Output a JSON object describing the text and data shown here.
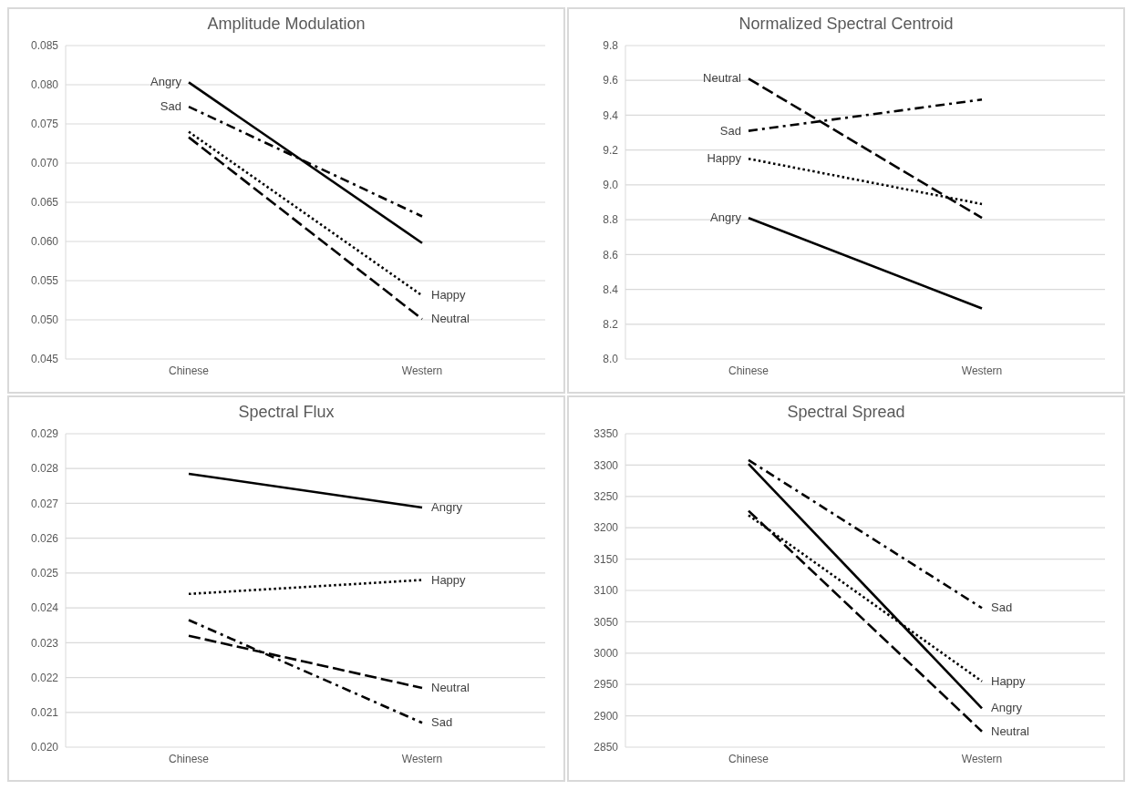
{
  "chart_data": [
    {
      "type": "line",
      "title": "Amplitude Modulation",
      "categories": [
        "Chinese",
        "Western"
      ],
      "ylim": [
        0.045,
        0.085
      ],
      "yticks": [
        {
          "value": 0.045,
          "label": "0.045"
        },
        {
          "value": 0.05,
          "label": "0.050"
        },
        {
          "value": 0.055,
          "label": "0.055"
        },
        {
          "value": 0.06,
          "label": "0.060"
        },
        {
          "value": 0.065,
          "label": "0.065"
        },
        {
          "value": 0.07,
          "label": "0.070"
        },
        {
          "value": 0.075,
          "label": "0.075"
        },
        {
          "value": 0.08,
          "label": "0.080"
        },
        {
          "value": 0.085,
          "label": "0.085"
        }
      ],
      "grid": "y",
      "legend": false,
      "marker": "none",
      "series": [
        {
          "color": "#000000",
          "line_style": "solid",
          "values": [
            0.0803,
            0.0598
          ]
        },
        {
          "color": "#000000",
          "line_style": "dashdot",
          "values": [
            0.0772,
            0.0632
          ]
        },
        {
          "color": "#000000",
          "line_style": "dotted",
          "values": [
            0.074,
            0.0531
          ]
        },
        {
          "color": "#000000",
          "line_style": "dashed",
          "values": [
            0.0733,
            0.0501
          ]
        }
      ],
      "annotations": [
        {
          "text": "Angry",
          "x": "Chinese",
          "y": 0.0803
        },
        {
          "text": "Sad",
          "x": "Chinese",
          "y": 0.0772
        },
        {
          "text": "Happy",
          "x": "Western",
          "y": 0.0531
        },
        {
          "text": "Neutral",
          "x": "Western",
          "y": 0.0501
        }
      ]
    },
    {
      "type": "line",
      "title": "Normalized Spectral Centroid",
      "categories": [
        "Chinese",
        "Western"
      ],
      "ylim": [
        8.0,
        9.8
      ],
      "yticks": [
        {
          "value": 8,
          "label": "8.0"
        },
        8.2,
        8.4,
        8.6,
        8.8,
        {
          "value": 9,
          "label": "9.0"
        },
        9.2,
        9.4,
        9.6,
        9.8
      ],
      "grid": "y",
      "legend": false,
      "marker": "none",
      "series": [
        {
          "color": "#000000",
          "line_style": "solid",
          "values": [
            8.81,
            8.29
          ]
        },
        {
          "color": "#000000",
          "line_style": "dashdot",
          "values": [
            9.31,
            9.49
          ]
        },
        {
          "color": "#000000",
          "line_style": "dotted",
          "values": [
            9.15,
            8.89
          ]
        },
        {
          "color": "#000000",
          "line_style": "dashed",
          "values": [
            9.61,
            8.81
          ]
        }
      ],
      "annotations": [
        {
          "text": "Angry",
          "x": "Chinese",
          "y": 8.81
        },
        {
          "text": "Sad",
          "x": "Chinese",
          "y": 9.31
        },
        {
          "text": "Happy",
          "x": "Chinese",
          "y": 9.15
        },
        {
          "text": "Neutral",
          "x": "Chinese",
          "y": 9.61
        }
      ]
    },
    {
      "type": "line",
      "title": "Spectral Flux",
      "categories": [
        "Chinese",
        "Western"
      ],
      "ylim": [
        0.02,
        0.029
      ],
      "yticks": [
        {
          "value": 0.02,
          "label": "0.020"
        },
        0.021,
        0.022,
        0.023,
        0.024,
        0.025,
        0.026,
        0.027,
        0.028,
        0.029
      ],
      "grid": "y",
      "legend": false,
      "marker": "none",
      "series": [
        {
          "color": "#000000",
          "line_style": "solid",
          "values": [
            0.02785,
            0.02688
          ]
        },
        {
          "color": "#000000",
          "line_style": "dotted",
          "values": [
            0.0244,
            0.0248
          ]
        },
        {
          "color": "#000000",
          "line_style": "dashed",
          "values": [
            0.0232,
            0.0217
          ]
        },
        {
          "color": "#000000",
          "line_style": "dashdot",
          "values": [
            0.02365,
            0.0207
          ]
        }
      ],
      "annotations": [
        {
          "text": "Angry",
          "x": "Western",
          "y": 0.02688
        },
        {
          "text": "Happy",
          "x": "Western",
          "y": 0.0248
        },
        {
          "text": "Neutral",
          "x": "Western",
          "y": 0.0217
        },
        {
          "text": "Sad",
          "x": "Western",
          "y": 0.0207
        }
      ]
    },
    {
      "type": "line",
      "title": "Spectral Spread",
      "categories": [
        "Chinese",
        "Western"
      ],
      "ylim": [
        2850,
        3350
      ],
      "yticks": [
        2850,
        2900,
        2950,
        3000,
        3050,
        3100,
        3150,
        3200,
        3250,
        3300,
        3350
      ],
      "grid": "y",
      "legend": false,
      "marker": "none",
      "series": [
        {
          "color": "#000000",
          "line_style": "dashdot",
          "values": [
            3308,
            3072
          ]
        },
        {
          "color": "#000000",
          "line_style": "dotted",
          "values": [
            3220,
            2955
          ]
        },
        {
          "color": "#000000",
          "line_style": "solid",
          "values": [
            3302,
            2912
          ]
        },
        {
          "color": "#000000",
          "line_style": "dashed",
          "values": [
            3227,
            2875
          ]
        }
      ],
      "annotations": [
        {
          "text": "Sad",
          "x": "Western",
          "y": 3072
        },
        {
          "text": "Happy",
          "x": "Western",
          "y": 2955
        },
        {
          "text": "Angry",
          "x": "Western",
          "y": 2912
        },
        {
          "text": "Neutral",
          "x": "Western",
          "y": 2875
        }
      ]
    }
  ]
}
